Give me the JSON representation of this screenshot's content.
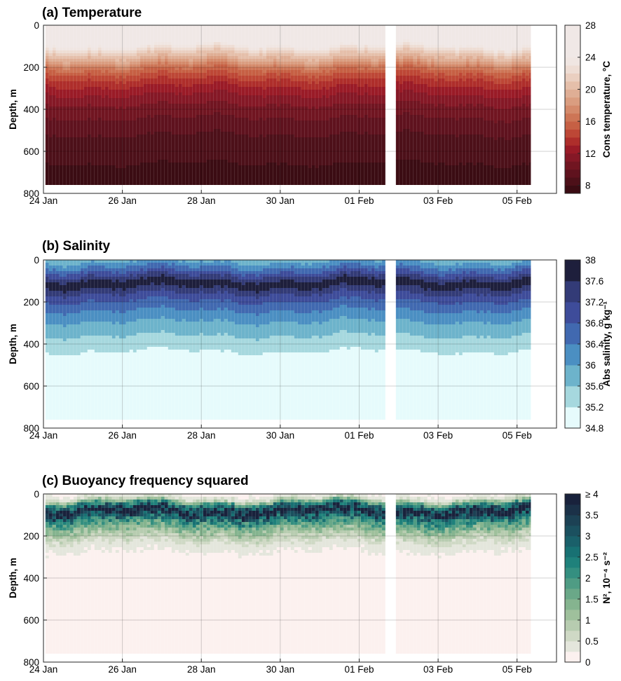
{
  "chart_data": [
    {
      "type": "heatmap",
      "title": "(a) Temperature",
      "ylabel": "Depth, m",
      "xlabel": "",
      "x_ticks": [
        "24 Jan",
        "26 Jan",
        "28 Jan",
        "30 Jan",
        "01 Feb",
        "03 Feb",
        "05 Feb"
      ],
      "x_tick_days": [
        0,
        2,
        4,
        6,
        8,
        10,
        12
      ],
      "xlim_days": [
        0,
        13.0
      ],
      "y_ticks": [
        "0",
        "200",
        "400",
        "600",
        "800"
      ],
      "ylim": [
        0,
        800
      ],
      "y_reversed": true,
      "grid": true,
      "data_extent": {
        "start_day": 0.05,
        "end_day": 12.35,
        "bottom_depth": 760,
        "gap_days": [
          8.7,
          8.9
        ]
      },
      "colorbar": {
        "label": "Cons temperature, °C",
        "levels": [
          7,
          8,
          9,
          10,
          11,
          12,
          13,
          14,
          15,
          16,
          17,
          18,
          19,
          20,
          21,
          22,
          23,
          24,
          25,
          26,
          27,
          28
        ],
        "tick_values": [
          8,
          12,
          16,
          20,
          24,
          28
        ],
        "tick_labels": [
          "8",
          "12",
          "16",
          "20",
          "24",
          "28"
        ],
        "colors": [
          "#3b0c13",
          "#4d1019",
          "#5f121e",
          "#711521",
          "#851826",
          "#9a1b27",
          "#ae2e2b",
          "#bd4736",
          "#c66044",
          "#cd7556",
          "#d48a6b",
          "#da9d80",
          "#dfae95",
          "#e5bfaa",
          "#eacfc0",
          "#eeddd4",
          "#f0e6e2",
          "#f0e8e6",
          "#f0e8e6",
          "#f0e8e6",
          "#f0e8e6"
        ]
      },
      "profile": {
        "depths": [
          0,
          80,
          100,
          120,
          140,
          160,
          180,
          200,
          230,
          270,
          330,
          400,
          520,
          600,
          800
        ],
        "values": [
          27.5,
          25.5,
          23.5,
          22.0,
          20.5,
          19.5,
          18.0,
          16.5,
          15.0,
          13.5,
          12.0,
          10.5,
          9.0,
          8.2,
          7.5
        ]
      }
    },
    {
      "type": "heatmap",
      "title": "(b) Salinity",
      "ylabel": "Depth, m",
      "xlabel": "",
      "x_ticks": [
        "24 Jan",
        "26 Jan",
        "28 Jan",
        "30 Jan",
        "01 Feb",
        "03 Feb",
        "05 Feb"
      ],
      "x_tick_days": [
        0,
        2,
        4,
        6,
        8,
        10,
        12
      ],
      "xlim_days": [
        0,
        13.0
      ],
      "y_ticks": [
        "0",
        "200",
        "400",
        "600",
        "800"
      ],
      "ylim": [
        0,
        800
      ],
      "y_reversed": true,
      "grid": true,
      "data_extent": {
        "start_day": 0.05,
        "end_day": 12.35,
        "bottom_depth": 760,
        "gap_days": [
          8.7,
          8.9
        ]
      },
      "colorbar": {
        "label": "Abs salinity, g kg⁻¹",
        "levels": [
          34.8,
          35.2,
          35.6,
          36.0,
          36.4,
          36.8,
          37.2,
          37.6,
          38.0
        ],
        "tick_values": [
          34.8,
          35.2,
          35.6,
          36.0,
          36.4,
          36.8,
          37.2,
          37.6,
          38.0
        ],
        "tick_labels": [
          "34.8",
          "35.2",
          "35.6",
          "36",
          "36.4",
          "36.8",
          "37.2",
          "37.6",
          "38"
        ],
        "colors": [
          "#e6fbfc",
          "#a6d8de",
          "#6db3cb",
          "#4b8fc2",
          "#4169b0",
          "#3e4c9a",
          "#333b77",
          "#1e1f3c"
        ]
      },
      "profile": {
        "depths": [
          0,
          20,
          45,
          65,
          85,
          100,
          110,
          125,
          145,
          175,
          215,
          265,
          320,
          400,
          470,
          800
        ],
        "values": [
          35.8,
          36.2,
          36.6,
          37.0,
          37.4,
          37.7,
          37.9,
          37.7,
          37.4,
          37.0,
          36.6,
          36.2,
          35.8,
          35.4,
          35.0,
          34.9
        ]
      }
    },
    {
      "type": "heatmap",
      "title": "(c) Buoyancy frequency squared",
      "ylabel": "Depth, m",
      "xlabel": "",
      "x_ticks": [
        "24 Jan",
        "26 Jan",
        "28 Jan",
        "30 Jan",
        "01 Feb",
        "03 Feb",
        "05 Feb"
      ],
      "x_tick_days": [
        0,
        2,
        4,
        6,
        8,
        10,
        12
      ],
      "xlim_days": [
        0,
        13.0
      ],
      "y_ticks": [
        "0",
        "200",
        "400",
        "600",
        "800"
      ],
      "ylim": [
        0,
        800
      ],
      "y_reversed": true,
      "grid": true,
      "data_extent": {
        "start_day": 0.05,
        "end_day": 12.35,
        "bottom_depth": 760,
        "gap_days": [
          8.7,
          8.9
        ]
      },
      "colorbar": {
        "label": "N², 10⁻⁴ s⁻²",
        "levels": [
          0,
          0.25,
          0.5,
          0.75,
          1.0,
          1.25,
          1.5,
          1.75,
          2.0,
          2.25,
          2.5,
          2.75,
          3.0,
          3.25,
          3.5,
          3.75,
          4.0
        ],
        "tick_values": [
          0,
          0.5,
          1.0,
          1.5,
          2.0,
          2.5,
          3.0,
          3.5,
          4.0
        ],
        "tick_labels": [
          "0",
          "0.5",
          "1",
          "1.5",
          "2",
          "2.5",
          "3",
          "3.5",
          "≥ 4"
        ],
        "colors": [
          "#fcf1ef",
          "#e4e6dc",
          "#cfd9c5",
          "#b7ccb0",
          "#9fc09c",
          "#85b48f",
          "#6aa888",
          "#4f9c84",
          "#348f80",
          "#1f817b",
          "#187173",
          "#1a606a",
          "#1b505f",
          "#1c4154",
          "#1b3148",
          "#19223c"
        ]
      },
      "profile": {
        "depths": [
          0,
          25,
          45,
          60,
          75,
          85,
          95,
          110,
          130,
          150,
          175,
          200,
          240,
          300,
          800
        ],
        "values": [
          0.2,
          0.6,
          2.0,
          3.0,
          3.8,
          4.2,
          3.6,
          2.8,
          2.2,
          1.7,
          1.2,
          0.8,
          0.4,
          0.15,
          0.05
        ]
      }
    }
  ]
}
